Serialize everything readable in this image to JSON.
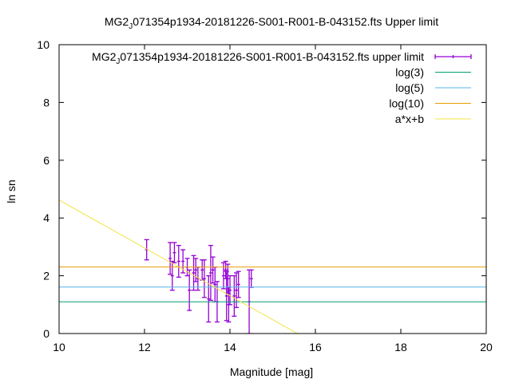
{
  "chart_data": {
    "type": "scatter",
    "title": "MG2 J071354p1934-20181226-S001-R001-B-043152.fts Upper limit",
    "title_prefix": "MG2",
    "title_sub": "J",
    "title_suffix": "071354p1934-20181226-S001-R001-B-043152.fts Upper limit",
    "xlabel": "Magnitude [mag]",
    "ylabel": "ln sn",
    "xlim": [
      10,
      20
    ],
    "ylim": [
      0,
      10
    ],
    "xticks": [
      10,
      12,
      14,
      16,
      18,
      20
    ],
    "yticks": [
      0,
      2,
      4,
      6,
      8,
      10
    ],
    "legend_position": "top-right",
    "grid": false,
    "series": [
      {
        "name": "MG2 J071354p1934-20181226-S001-R001-B-043152.fts upper limit",
        "name_prefix": "MG2",
        "name_sub": "J",
        "name_suffix": "071354p1934-20181226-S001-R001-B-043152.fts upper limit",
        "style": "errorbars",
        "color": "#9400d3",
        "points": [
          {
            "x": 12.05,
            "y": 2.9,
            "err": 0.35
          },
          {
            "x": 12.6,
            "y": 2.6,
            "err": 0.55
          },
          {
            "x": 12.65,
            "y": 2.0,
            "err": 0.5
          },
          {
            "x": 12.7,
            "y": 2.8,
            "err": 0.35
          },
          {
            "x": 12.8,
            "y": 2.5,
            "err": 0.55
          },
          {
            "x": 12.9,
            "y": 2.5,
            "err": 0.4
          },
          {
            "x": 13.0,
            "y": 2.3,
            "err": 0.3
          },
          {
            "x": 13.05,
            "y": 1.5,
            "err": 0.7
          },
          {
            "x": 13.15,
            "y": 2.1,
            "err": 0.6
          },
          {
            "x": 13.2,
            "y": 2.2,
            "err": 0.4
          },
          {
            "x": 13.25,
            "y": 1.9,
            "err": 0.4
          },
          {
            "x": 13.35,
            "y": 2.2,
            "err": 0.35
          },
          {
            "x": 13.4,
            "y": 1.9,
            "err": 0.65
          },
          {
            "x": 13.5,
            "y": 1.2,
            "err": 0.8
          },
          {
            "x": 13.55,
            "y": 2.1,
            "err": 0.95
          },
          {
            "x": 13.6,
            "y": 2.2,
            "err": 0.45
          },
          {
            "x": 13.65,
            "y": 1.7,
            "err": 0.6
          },
          {
            "x": 13.7,
            "y": 1.1,
            "err": 0.7
          },
          {
            "x": 13.85,
            "y": 2.0,
            "err": 0.45
          },
          {
            "x": 13.9,
            "y": 2.2,
            "err": 0.3
          },
          {
            "x": 13.92,
            "y": 1.3,
            "err": 0.85
          },
          {
            "x": 13.95,
            "y": 1.9,
            "err": 0.5
          },
          {
            "x": 13.97,
            "y": 1.0,
            "err": 0.6
          },
          {
            "x": 14.0,
            "y": 1.5,
            "err": 0.5
          },
          {
            "x": 14.1,
            "y": 1.3,
            "err": 0.7
          },
          {
            "x": 14.15,
            "y": 1.5,
            "err": 0.6
          },
          {
            "x": 14.2,
            "y": 1.7,
            "err": 0.45
          },
          {
            "x": 14.45,
            "y": 1.1,
            "err": 1.1
          },
          {
            "x": 14.5,
            "y": 1.9,
            "err": 0.3
          }
        ]
      },
      {
        "name": "log(3)",
        "style": "hline",
        "color": "#009e73",
        "y": 1.0986
      },
      {
        "name": "log(5)",
        "style": "hline",
        "color": "#56b4e9",
        "y": 1.6094
      },
      {
        "name": "log(10)",
        "style": "hline",
        "color": "#e69f00",
        "y": 2.3026
      },
      {
        "name": "a*x+b",
        "style": "line",
        "color": "#f0e442",
        "x": [
          10,
          15.58
        ],
        "y": [
          4.62,
          0
        ]
      }
    ]
  }
}
